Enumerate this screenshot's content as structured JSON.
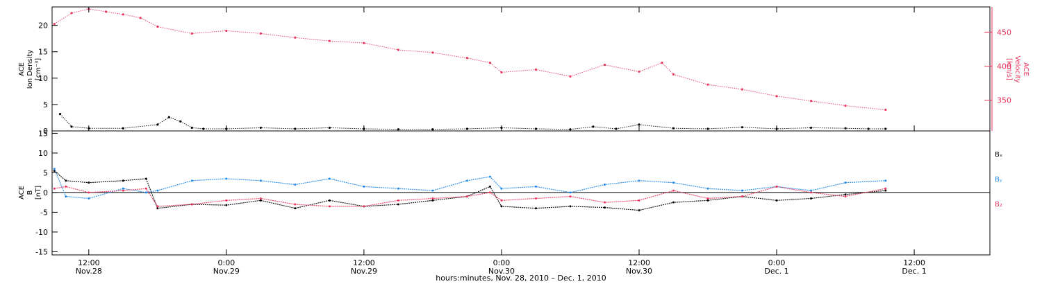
{
  "colors": {
    "density": "#000000",
    "velocity": "#e8365d",
    "bx": "#000000",
    "by": "#1f88e5",
    "bz": "#e8365d"
  },
  "x_axis": {
    "range_hours": [
      -3.2,
      78.6
    ],
    "ticks": [
      {
        "hours": 0,
        "time": "12:00",
        "date": "Nov.28"
      },
      {
        "hours": 12,
        "time": "0:00",
        "date": "Nov.29"
      },
      {
        "hours": 24,
        "time": "12:00",
        "date": "Nov.29"
      },
      {
        "hours": 36,
        "time": "0:00",
        "date": "Nov.30"
      },
      {
        "hours": 48,
        "time": "12:00",
        "date": "Nov.30"
      },
      {
        "hours": 60,
        "time": "0:00",
        "date": "Dec. 1"
      },
      {
        "hours": 72,
        "time": "12:00",
        "date": "Dec. 1"
      }
    ],
    "caption": "hours:minutes, Nov. 28, 2010 – Dec. 1, 2010"
  },
  "chart_data": [
    {
      "type": "scatter",
      "panel": "top",
      "ylabel_left": [
        "ACE",
        "Ion Density",
        "[cm⁻³]"
      ],
      "ylabel_right": [
        "ACE",
        "Velocity",
        "[km/s]"
      ],
      "ylim_left": [
        0,
        23.5
      ],
      "ylim_right": [
        305,
        487
      ],
      "yticks_left": [
        "0",
        "5",
        "10",
        "15",
        "20"
      ],
      "yticks_right": [
        "350",
        "400",
        "450"
      ],
      "series": [
        {
          "axis": "left",
          "x_hours": [
            -2.5,
            -1.5,
            0,
            3,
            6,
            7,
            8,
            9,
            10,
            12,
            15,
            18,
            21,
            24,
            27,
            30,
            33,
            36,
            39,
            42,
            44,
            46,
            48,
            51,
            54,
            57,
            60,
            63,
            66,
            68,
            69.5
          ],
          "values": [
            3.2,
            0.8,
            0.5,
            0.5,
            1.2,
            2.6,
            1.8,
            0.6,
            0.4,
            0.4,
            0.6,
            0.4,
            0.6,
            0.4,
            0.3,
            0.3,
            0.4,
            0.6,
            0.4,
            0.3,
            0.8,
            0.4,
            1.2,
            0.5,
            0.4,
            0.7,
            0.4,
            0.6,
            0.5,
            0.4,
            0.4
          ]
        },
        {
          "axis": "right",
          "x_hours": [
            -3,
            -1.5,
            0,
            1.5,
            3,
            4.5,
            6,
            9,
            12,
            15,
            18,
            21,
            24,
            27,
            30,
            33,
            35,
            36,
            39,
            42,
            45,
            48,
            50,
            51,
            54,
            57,
            60,
            63,
            66,
            69.5
          ],
          "values": [
            462,
            478,
            484,
            480,
            476,
            471,
            458,
            448,
            452,
            448,
            442,
            437,
            434,
            424,
            420,
            412,
            405,
            391,
            395,
            385,
            402,
            392,
            405,
            388,
            373,
            366,
            356,
            349,
            342,
            336
          ]
        }
      ]
    },
    {
      "type": "scatter",
      "panel": "bottom",
      "ylabel": [
        "ACE",
        "B",
        "[nT]"
      ],
      "ylim": [
        -15.8,
        15.6
      ],
      "yticks": [
        "-15",
        "-10",
        "-5",
        "0",
        "5",
        "10",
        "15"
      ],
      "legend": [
        "Bₓ",
        "Bᵧ",
        "B₂"
      ],
      "series": [
        {
          "name": "Bₓ",
          "x_hours": [
            -3,
            -2,
            0,
            3,
            5,
            6,
            9,
            12,
            15,
            18,
            21,
            24,
            27,
            30,
            33,
            35,
            36,
            39,
            42,
            45,
            48,
            51,
            54,
            57,
            60,
            63,
            66,
            69.5
          ],
          "values": [
            5.5,
            3.0,
            2.5,
            3.0,
            3.5,
            -4.0,
            -3.0,
            -3.2,
            -2.0,
            -4.0,
            -2.0,
            -3.5,
            -3.0,
            -2.0,
            -1.0,
            1.5,
            -3.5,
            -4.0,
            -3.5,
            -3.8,
            -4.5,
            -2.5,
            -2.0,
            -1.0,
            -2.0,
            -1.5,
            -0.5,
            0.5
          ]
        },
        {
          "name": "Bᵧ",
          "x_hours": [
            -3,
            -2,
            0,
            3,
            5,
            6,
            9,
            12,
            15,
            18,
            21,
            24,
            27,
            30,
            33,
            35,
            36,
            39,
            42,
            45,
            48,
            51,
            54,
            57,
            60,
            63,
            66,
            69.5
          ],
          "values": [
            6.0,
            -1.0,
            -1.5,
            1.0,
            0.0,
            0.5,
            3.0,
            3.5,
            3.0,
            2.0,
            3.5,
            1.5,
            1.0,
            0.5,
            3.0,
            4.0,
            1.0,
            1.5,
            0.0,
            2.0,
            3.0,
            2.5,
            1.0,
            0.5,
            1.5,
            0.5,
            2.5,
            3.0
          ]
        },
        {
          "name": "B₂",
          "x_hours": [
            -3,
            -2,
            0,
            3,
            5,
            6,
            9,
            12,
            15,
            18,
            21,
            24,
            27,
            30,
            33,
            35,
            36,
            39,
            42,
            45,
            48,
            51,
            54,
            57,
            60,
            63,
            66,
            69.5
          ],
          "values": [
            1.0,
            1.5,
            0.0,
            0.5,
            1.0,
            -3.5,
            -3.0,
            -2.0,
            -1.5,
            -3.0,
            -3.5,
            -3.5,
            -2.0,
            -1.5,
            -1.0,
            0.0,
            -2.0,
            -1.5,
            -1.0,
            -2.5,
            -2.0,
            0.5,
            -1.5,
            -1.0,
            1.5,
            0.0,
            -1.0,
            1.0
          ]
        }
      ]
    }
  ]
}
